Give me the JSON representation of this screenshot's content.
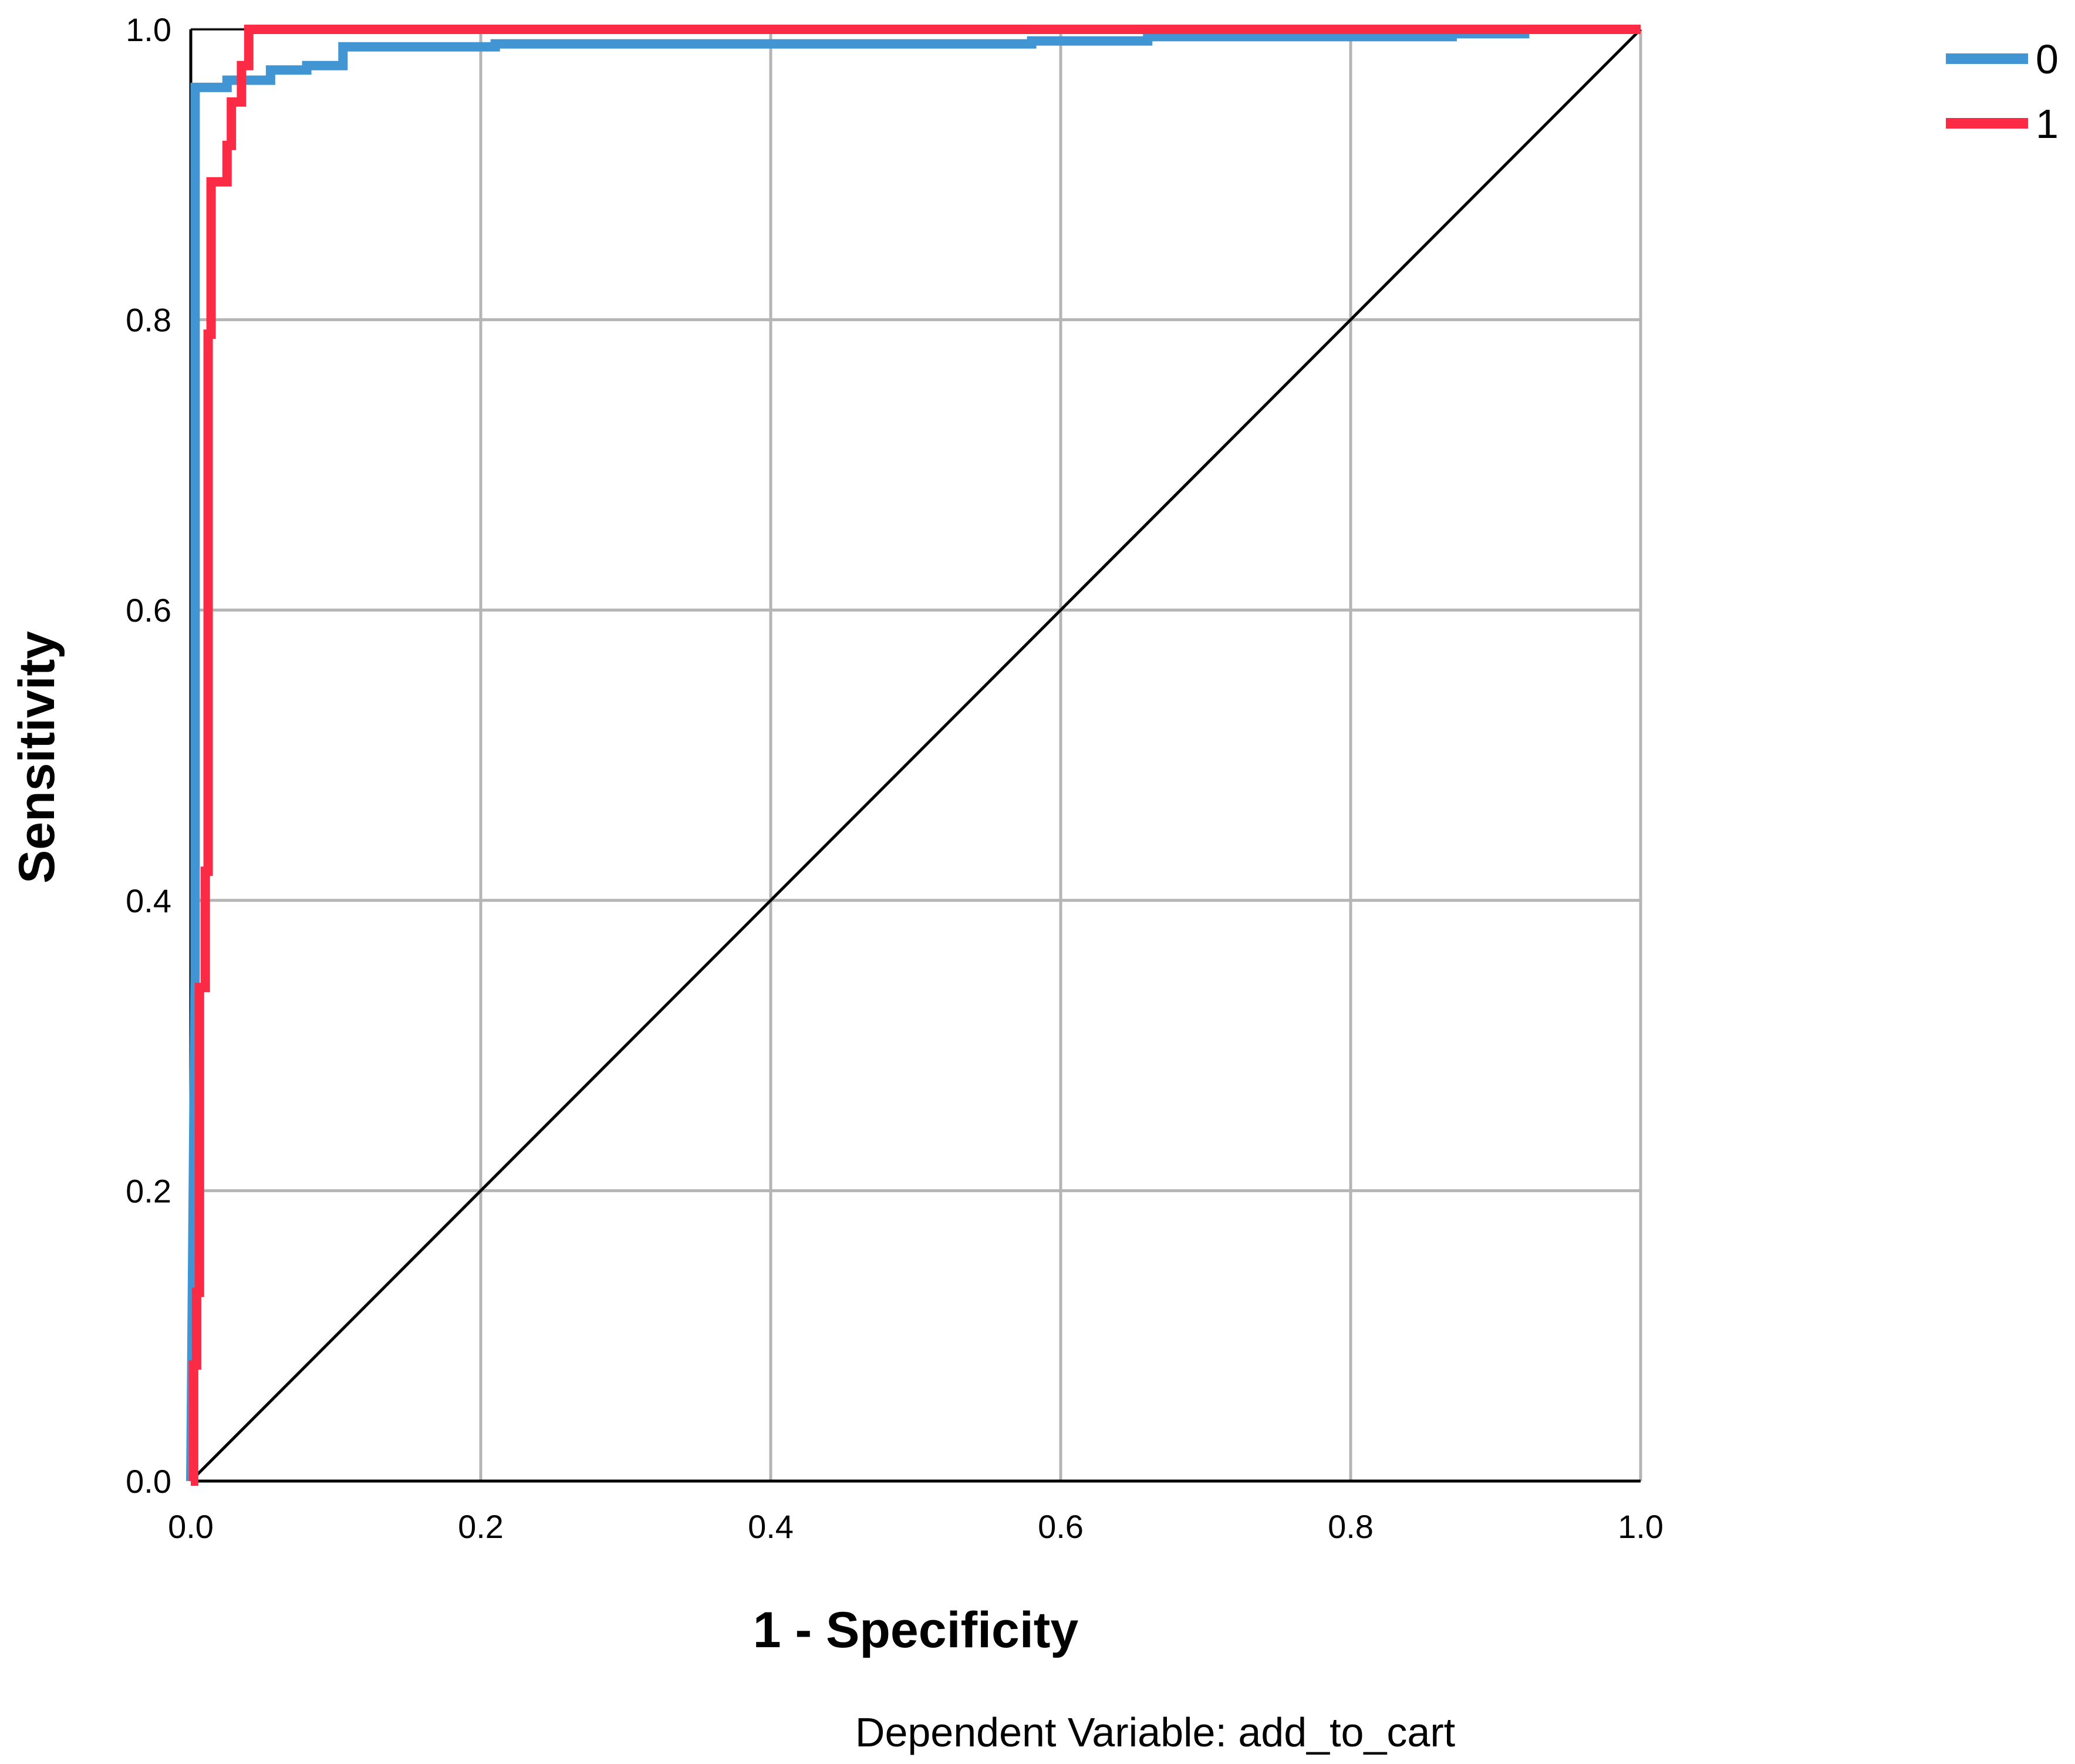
{
  "chart_data": {
    "type": "line",
    "xlabel": "1 - Specificity",
    "ylabel": "Sensitivity",
    "footnote": "Dependent Variable: add_to_cart",
    "xlim": [
      0.0,
      1.0
    ],
    "ylim": [
      0.0,
      1.0
    ],
    "x_ticks": [
      "0.0",
      "0.2",
      "0.4",
      "0.6",
      "0.8",
      "1.0"
    ],
    "y_ticks": [
      "0.0",
      "0.2",
      "0.4",
      "0.6",
      "0.8",
      "1.0"
    ],
    "grid": true,
    "legend_position": "top-right",
    "series": [
      {
        "name": "0",
        "color": "#4095d2",
        "points": [
          [
            0.0,
            0.0
          ],
          [
            0.003,
            0.35
          ],
          [
            0.003,
            0.96
          ],
          [
            0.025,
            0.96
          ],
          [
            0.025,
            0.965
          ],
          [
            0.055,
            0.965
          ],
          [
            0.055,
            0.972
          ],
          [
            0.08,
            0.972
          ],
          [
            0.08,
            0.975
          ],
          [
            0.105,
            0.975
          ],
          [
            0.105,
            0.988
          ],
          [
            0.21,
            0.988
          ],
          [
            0.21,
            0.99
          ],
          [
            0.58,
            0.99
          ],
          [
            0.58,
            0.992
          ],
          [
            0.66,
            0.992
          ],
          [
            0.66,
            0.995
          ],
          [
            0.87,
            0.995
          ],
          [
            0.87,
            0.997
          ],
          [
            0.92,
            0.997
          ],
          [
            0.92,
            1.0
          ],
          [
            1.0,
            1.0
          ]
        ]
      },
      {
        "name": "1",
        "color": "#fb2a45",
        "points": [
          [
            0.0,
            0.0
          ],
          [
            0.002,
            0.0
          ],
          [
            0.002,
            0.08
          ],
          [
            0.004,
            0.08
          ],
          [
            0.004,
            0.13
          ],
          [
            0.006,
            0.13
          ],
          [
            0.006,
            0.34
          ],
          [
            0.01,
            0.34
          ],
          [
            0.01,
            0.42
          ],
          [
            0.012,
            0.42
          ],
          [
            0.012,
            0.79
          ],
          [
            0.014,
            0.79
          ],
          [
            0.014,
            0.895
          ],
          [
            0.025,
            0.895
          ],
          [
            0.025,
            0.92
          ],
          [
            0.028,
            0.92
          ],
          [
            0.028,
            0.95
          ],
          [
            0.035,
            0.95
          ],
          [
            0.035,
            0.975
          ],
          [
            0.04,
            0.975
          ],
          [
            0.04,
            1.0
          ],
          [
            1.0,
            1.0
          ]
        ]
      },
      {
        "name": "",
        "color": "#000000",
        "points": [
          [
            0.0,
            0.0
          ],
          [
            1.0,
            1.0
          ]
        ]
      }
    ]
  }
}
